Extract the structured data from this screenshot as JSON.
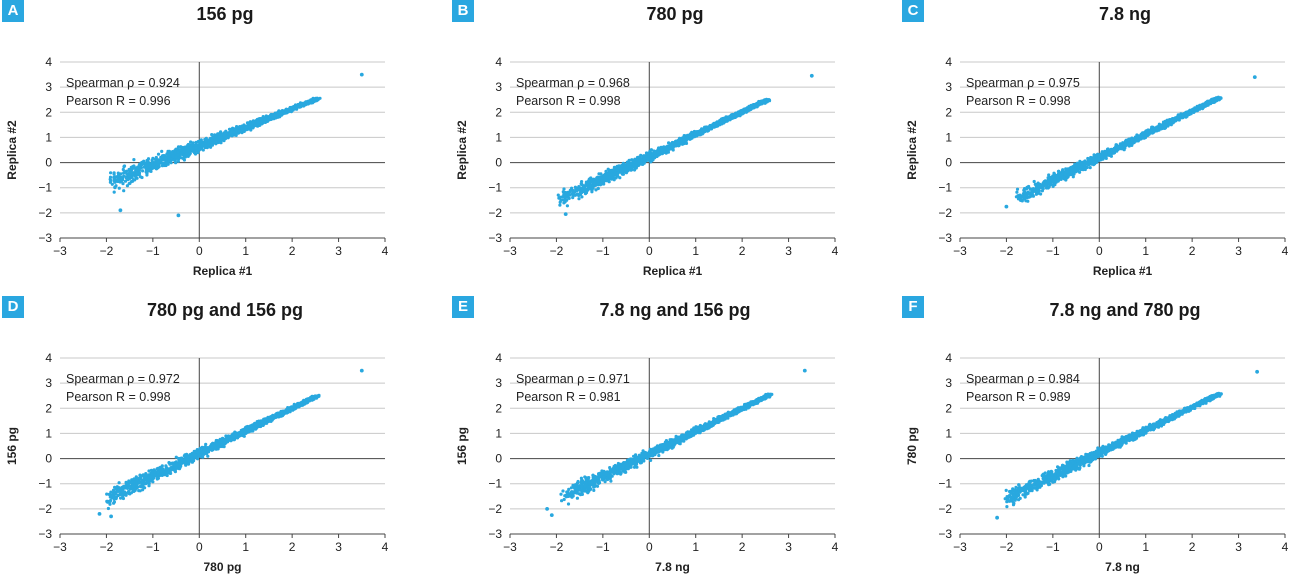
{
  "colors": {
    "accent": "#2aa7e0",
    "points": "#29a8df",
    "grid": "#c8c8c8",
    "axis": "#444444"
  },
  "chart_data": [
    {
      "type": "scatter",
      "badge": "A",
      "title": "156 pg",
      "xlabel": "Replica #1",
      "ylabel": "Replica #2",
      "stat1": "Spearman ρ = 0.924",
      "stat2": "Pearson R = 0.996",
      "xlim": [
        -3,
        4
      ],
      "ylim": [
        -3,
        4
      ],
      "xticks": [
        "−3",
        "−2",
        "−1",
        "0",
        "1",
        "2",
        "3",
        "4"
      ],
      "yticks": [
        "−3",
        "−2",
        "−1",
        "0",
        "1",
        "2",
        "3",
        "4"
      ],
      "grid": "horizontal",
      "cloud": {
        "x_min": -1.9,
        "x_max": 2.55,
        "y_at_min": -0.75,
        "slope": 0.74,
        "spread_low": 0.75,
        "spread_high": 0.05,
        "n": 1400
      },
      "outliers": [
        [
          3.5,
          3.5
        ],
        [
          -0.45,
          -2.1
        ],
        [
          -1.7,
          -1.9
        ]
      ]
    },
    {
      "type": "scatter",
      "badge": "B",
      "title": "780 pg",
      "xlabel": "Replica #1",
      "ylabel": "Replica #2",
      "stat1": "Spearman ρ = 0.968",
      "stat2": "Pearson R = 0.998",
      "xlim": [
        -3,
        4
      ],
      "ylim": [
        -3,
        4
      ],
      "xticks": [
        "−3",
        "−2",
        "−1",
        "0",
        "1",
        "2",
        "3",
        "4"
      ],
      "yticks": [
        "−3",
        "−2",
        "−1",
        "0",
        "1",
        "2",
        "3",
        "4"
      ],
      "grid": "horizontal",
      "cloud": {
        "x_min": -1.95,
        "x_max": 2.55,
        "y_at_min": -1.5,
        "slope": 0.89,
        "spread_low": 0.55,
        "spread_high": 0.05,
        "n": 1400
      },
      "outliers": [
        [
          3.5,
          3.45
        ],
        [
          -1.8,
          -2.05
        ]
      ]
    },
    {
      "type": "scatter",
      "badge": "C",
      "title": "7.8 ng",
      "xlabel": "Replica #1",
      "ylabel": "Replica #2",
      "stat1": "Spearman ρ = 0.975",
      "stat2": "Pearson R = 0.998",
      "xlim": [
        -3,
        4
      ],
      "ylim": [
        -3,
        4
      ],
      "xticks": [
        "−3",
        "−2",
        "−1",
        "0",
        "1",
        "2",
        "3",
        "4"
      ],
      "yticks": [
        "−3",
        "−2",
        "−1",
        "0",
        "1",
        "2",
        "3",
        "4"
      ],
      "grid": "horizontal",
      "cloud": {
        "x_min": -1.8,
        "x_max": 2.6,
        "y_at_min": -1.45,
        "slope": 0.92,
        "spread_low": 0.5,
        "spread_high": 0.05,
        "n": 1400
      },
      "outliers": [
        [
          3.35,
          3.4
        ],
        [
          -2.0,
          -1.75
        ]
      ]
    },
    {
      "type": "scatter",
      "badge": "D",
      "title": "780 pg and 156 pg",
      "xlabel": "780 pg",
      "ylabel": "156 pg",
      "stat1": "Spearman ρ = 0.972",
      "stat2": "Pearson R = 0.998",
      "xlim": [
        -3,
        4
      ],
      "ylim": [
        -3,
        4
      ],
      "xticks": [
        "−3",
        "−2",
        "−1",
        "0",
        "1",
        "2",
        "3",
        "4"
      ],
      "yticks": [
        "−3",
        "−2",
        "−1",
        "0",
        "1",
        "2",
        "3",
        "4"
      ],
      "grid": "horizontal",
      "cloud": {
        "x_min": -2.0,
        "x_max": 2.55,
        "y_at_min": -1.6,
        "slope": 0.9,
        "spread_low": 0.6,
        "spread_high": 0.05,
        "n": 1400
      },
      "outliers": [
        [
          3.5,
          3.5
        ],
        [
          -2.15,
          -2.2
        ],
        [
          -1.9,
          -2.3
        ]
      ]
    },
    {
      "type": "scatter",
      "badge": "E",
      "title": "7.8 ng and 156 pg",
      "xlabel": "7.8 ng",
      "ylabel": "156 pg",
      "stat1": "Spearman ρ = 0.971",
      "stat2": "Pearson R = 0.981",
      "xlim": [
        -3,
        4
      ],
      "ylim": [
        -3,
        4
      ],
      "xticks": [
        "−3",
        "−2",
        "−1",
        "0",
        "1",
        "2",
        "3",
        "4"
      ],
      "yticks": [
        "−3",
        "−2",
        "−1",
        "0",
        "1",
        "2",
        "3",
        "4"
      ],
      "grid": "horizontal",
      "cloud": {
        "x_min": -1.9,
        "x_max": 2.6,
        "y_at_min": -1.55,
        "slope": 0.91,
        "spread_low": 0.6,
        "spread_high": 0.05,
        "n": 1400
      },
      "outliers": [
        [
          3.35,
          3.5
        ],
        [
          -2.2,
          -2.0
        ],
        [
          -2.1,
          -2.25
        ]
      ]
    },
    {
      "type": "scatter",
      "badge": "F",
      "title": "7.8 ng and 780 pg",
      "xlabel": "7.8 ng",
      "ylabel": "780 pg",
      "stat1": "Spearman ρ = 0.984",
      "stat2": "Pearson R = 0.989",
      "xlim": [
        -3,
        4
      ],
      "ylim": [
        -3,
        4
      ],
      "xticks": [
        "−3",
        "−2",
        "−1",
        "0",
        "1",
        "2",
        "3",
        "4"
      ],
      "yticks": [
        "−3",
        "−2",
        "−1",
        "0",
        "1",
        "2",
        "3",
        "4"
      ],
      "grid": "horizontal",
      "cloud": {
        "x_min": -2.0,
        "x_max": 2.6,
        "y_at_min": -1.6,
        "slope": 0.91,
        "spread_low": 0.55,
        "spread_high": 0.05,
        "n": 1400
      },
      "outliers": [
        [
          3.4,
          3.45
        ],
        [
          -2.2,
          -2.35
        ]
      ]
    }
  ]
}
